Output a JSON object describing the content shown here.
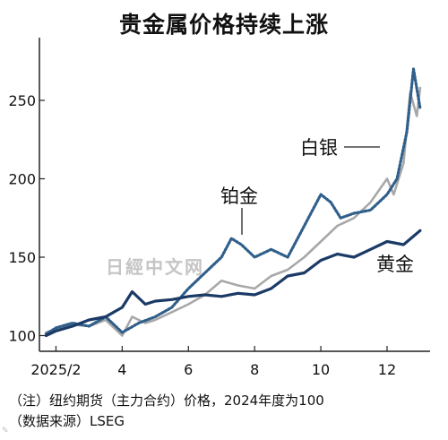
{
  "header": {
    "title": "贵金属价格持续上涨"
  },
  "notes": {
    "line1": "（注）纽约期货（主力合约）价格，2024年度为100",
    "line2": "（数据来源）LSEG"
  },
  "watermark": {
    "text": "日經中文网"
  },
  "colors": {
    "gold": "#1b3a66",
    "silver": "#a8a8a8",
    "platinum": "#2f5f8a",
    "axis": "#222222"
  },
  "chart_data": {
    "type": "line",
    "title": "贵金属价格持续上涨",
    "x_tick_labels": [
      "2025/2",
      "4",
      "6",
      "8",
      "10",
      "12"
    ],
    "x_tick_months": [
      2,
      4,
      6,
      8,
      10,
      12
    ],
    "xlim": [
      1.5,
      13.3
    ],
    "ylim": [
      90,
      290
    ],
    "y_ticks": [
      100,
      150,
      200,
      250
    ],
    "series": [
      {
        "name": "黄金",
        "style": "solid",
        "x": [
          1.7,
          2.0,
          2.5,
          3.0,
          3.5,
          4.0,
          4.3,
          4.7,
          5.0,
          5.5,
          6.0,
          6.5,
          7.0,
          7.5,
          8.0,
          8.5,
          9.0,
          9.5,
          10.0,
          10.5,
          11.0,
          11.5,
          12.0,
          12.5,
          13.0
        ],
        "y": [
          100,
          103,
          106,
          110,
          112,
          118,
          128,
          120,
          122,
          123,
          125,
          126,
          125,
          127,
          126,
          130,
          138,
          140,
          148,
          152,
          150,
          155,
          160,
          158,
          167
        ]
      },
      {
        "name": "白银",
        "style": "solid",
        "x": [
          1.7,
          2.0,
          2.5,
          3.0,
          3.5,
          4.0,
          4.3,
          4.7,
          5.0,
          5.5,
          6.0,
          6.5,
          7.0,
          7.5,
          8.0,
          8.5,
          9.0,
          9.5,
          10.0,
          10.5,
          11.0,
          11.5,
          12.0,
          12.2,
          12.5,
          12.7,
          12.9,
          13.0
        ],
        "y": [
          102,
          104,
          107,
          106,
          110,
          100,
          112,
          108,
          110,
          115,
          120,
          126,
          135,
          132,
          130,
          138,
          142,
          150,
          160,
          170,
          175,
          185,
          200,
          190,
          210,
          255,
          240,
          258
        ]
      },
      {
        "name": "铂金",
        "style": "dotted",
        "x": [
          1.7,
          2.0,
          2.5,
          3.0,
          3.5,
          4.0,
          4.5,
          5.0,
          5.5,
          6.0,
          6.5,
          7.0,
          7.3,
          7.6,
          8.0,
          8.5,
          9.0,
          9.5,
          10.0,
          10.3,
          10.6,
          11.0,
          11.5,
          12.0,
          12.3,
          12.6,
          12.8,
          13.0
        ],
        "y": [
          101,
          105,
          108,
          106,
          112,
          102,
          108,
          112,
          118,
          130,
          140,
          150,
          162,
          158,
          150,
          155,
          150,
          170,
          190,
          185,
          175,
          178,
          180,
          190,
          200,
          230,
          270,
          245
        ]
      }
    ],
    "annotations": [
      {
        "label": "白银",
        "series": "白银"
      },
      {
        "label": "铂金",
        "series": "铂金"
      },
      {
        "label": "黄金",
        "series": "黄金"
      }
    ]
  }
}
